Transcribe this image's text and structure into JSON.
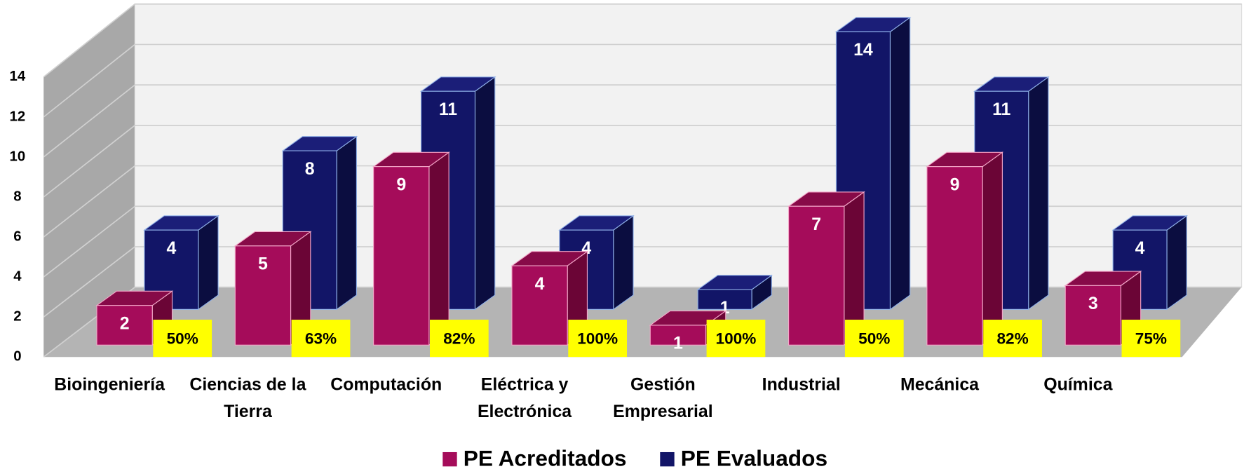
{
  "chart_data": {
    "type": "bar3d",
    "categories": [
      "Bioingeniería",
      "Ciencias de la Tierra",
      "Computación",
      "Eléctrica y Electrónica",
      "Gestión Empresarial",
      "Industrial",
      "Mecánica",
      "Química"
    ],
    "series": [
      {
        "name": "PE Acreditados",
        "color": "#a50c5a",
        "values": [
          2,
          5,
          9,
          4,
          1,
          7,
          9,
          3
        ]
      },
      {
        "name": "PE Evaluados",
        "color": "#121567",
        "values": [
          4,
          8,
          11,
          4,
          1,
          14,
          11,
          4
        ]
      }
    ],
    "annotations": [
      "50%",
      "63%",
      "82%",
      "100%",
      "100%",
      "50%",
      "82%",
      "75%"
    ],
    "ylim": [
      0,
      14
    ],
    "yticks": [
      0,
      2,
      4,
      6,
      8,
      10,
      12,
      14
    ],
    "grid": true,
    "legend": "bottom"
  }
}
